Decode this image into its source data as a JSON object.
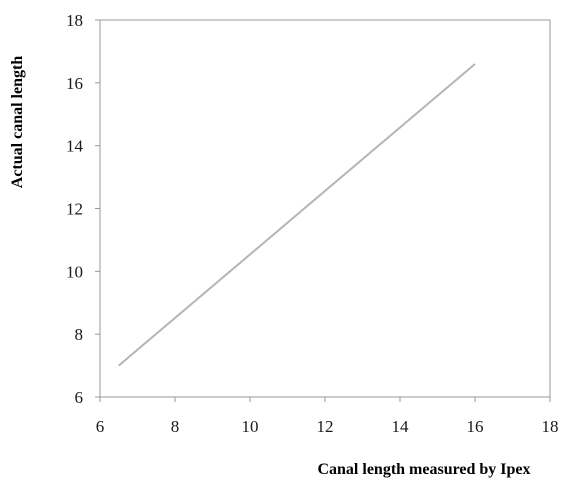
{
  "chart_data": {
    "type": "line",
    "title": "",
    "xlabel": "Canal length measured by Ipex",
    "ylabel": "Actual canal length",
    "xlim": [
      6,
      18
    ],
    "ylim": [
      6,
      18
    ],
    "xticks": [
      6,
      8,
      10,
      12,
      14,
      16,
      18
    ],
    "yticks": [
      6,
      8,
      10,
      12,
      14,
      16,
      18
    ],
    "grid": false,
    "legend": "none",
    "series": [
      {
        "x": [
          6.5,
          16.0
        ],
        "y": [
          7.0,
          16.6
        ]
      }
    ],
    "colors": {
      "line": "#b5b5b5",
      "frame": "#9a9a9a",
      "text": "#1a1a1a"
    }
  }
}
